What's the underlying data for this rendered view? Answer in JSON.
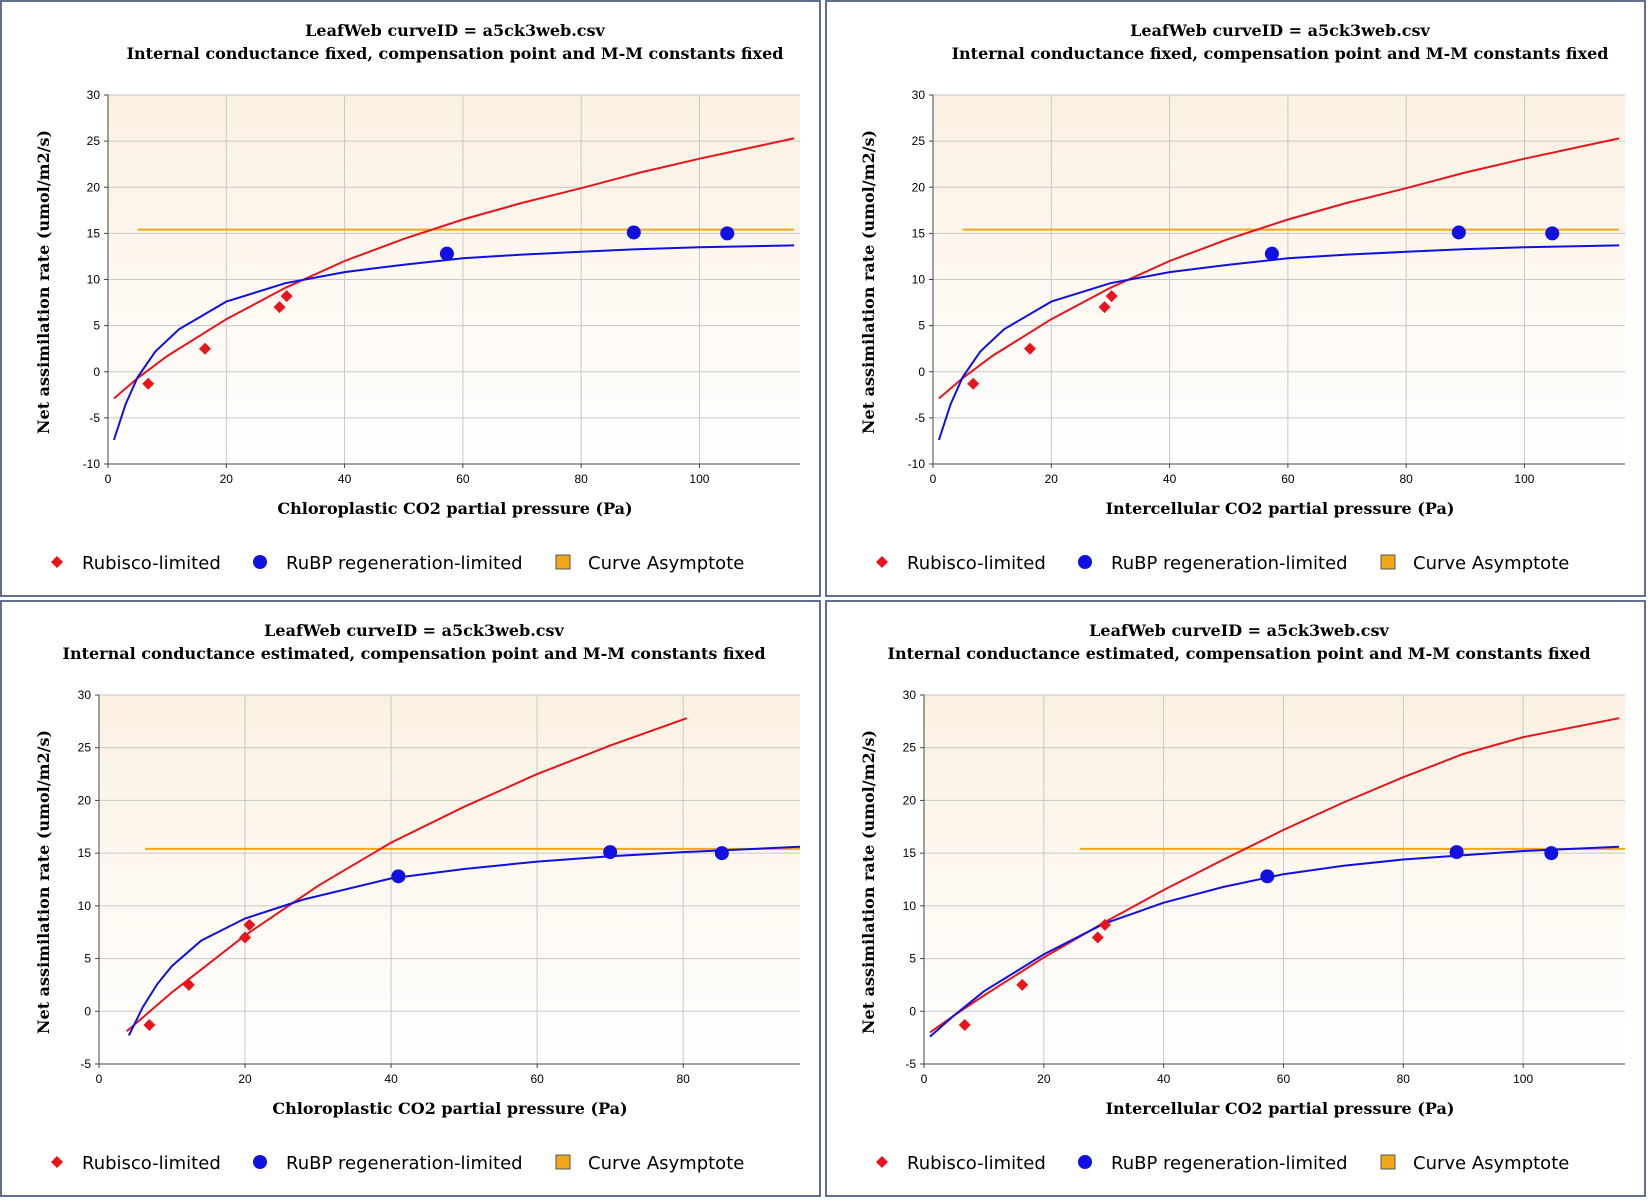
{
  "colors": {
    "rubisco": "#e8141c",
    "rubp": "#1010e0",
    "asymptote": "#f0a818",
    "plot_bg_top": "#fbf1e2",
    "plot_bg_bottom": "#ffffff",
    "grid": "#c8c8c8",
    "border": "#5f6f8d"
  },
  "legend": {
    "rubisco": "Rubisco-limited",
    "rubp": "RuBP regeneration-limited",
    "asymptote": "Curve Asymptote"
  },
  "chart_data": [
    {
      "type": "scatter",
      "title": "LeafWeb curveID = a5ck3web.csv",
      "subtitle": "Internal conductance fixed, compensation point and M-M constants fixed",
      "xlabel": "Chloroplastic CO2 partial pressure (Pa)",
      "ylabel": "Net assimilation rate (umol/m2/s)",
      "xlim": [
        0,
        117
      ],
      "ylim": [
        -10,
        30
      ],
      "xticks": [
        0,
        20,
        40,
        60,
        80,
        100
      ],
      "yticks": [
        -10,
        -5,
        0,
        5,
        10,
        15,
        20,
        25,
        30
      ],
      "grid": true,
      "legend_position": "bottom",
      "series": [
        {
          "name": "Rubisco-limited",
          "kind": "points",
          "marker": "diamond",
          "x": [
            6.8,
            16.4,
            29.0,
            30.2
          ],
          "y": [
            -1.3,
            2.5,
            7.0,
            8.2
          ]
        },
        {
          "name": "RuBP regeneration-limited",
          "kind": "points",
          "marker": "circle",
          "x": [
            57.3,
            88.9,
            104.7
          ],
          "y": [
            12.8,
            15.1,
            15.0
          ]
        },
        {
          "name": "Curve Asymptote",
          "kind": "line",
          "x": [
            5,
            116
          ],
          "y": [
            15.4,
            15.4
          ]
        },
        {
          "kind": "curve",
          "color": "rubisco",
          "x": [
            1,
            5,
            10,
            20,
            30,
            40,
            50,
            60,
            70,
            80,
            90,
            100,
            116
          ],
          "y": [
            -2.9,
            -0.7,
            1.7,
            5.7,
            9.1,
            12.0,
            14.4,
            16.5,
            18.3,
            19.9,
            21.6,
            23.1,
            25.3
          ]
        },
        {
          "kind": "curve",
          "color": "rubp",
          "x": [
            1,
            3,
            5,
            8,
            12,
            20,
            30,
            40,
            50,
            60,
            70,
            80,
            90,
            100,
            116
          ],
          "y": [
            -7.4,
            -3.5,
            -0.6,
            2.2,
            4.6,
            7.6,
            9.6,
            10.8,
            11.6,
            12.3,
            12.7,
            13.0,
            13.3,
            13.5,
            13.7
          ]
        }
      ]
    },
    {
      "type": "scatter",
      "title": "LeafWeb curveID = a5ck3web.csv",
      "subtitle": "Internal conductance fixed, compensation point and M-M constants fixed",
      "xlabel": "Intercellular CO2 partial pressure (Pa)",
      "ylabel": "Net assimilation rate (umol/m2/s)",
      "xlim": [
        0,
        117
      ],
      "ylim": [
        -10,
        30
      ],
      "xticks": [
        0,
        20,
        40,
        60,
        80,
        100
      ],
      "yticks": [
        -10,
        -5,
        0,
        5,
        10,
        15,
        20,
        25,
        30
      ],
      "grid": true,
      "legend_position": "bottom",
      "series": [
        {
          "name": "Rubisco-limited",
          "kind": "points",
          "marker": "diamond",
          "x": [
            6.8,
            16.4,
            29.0,
            30.2
          ],
          "y": [
            -1.3,
            2.5,
            7.0,
            8.2
          ]
        },
        {
          "name": "RuBP regeneration-limited",
          "kind": "points",
          "marker": "circle",
          "x": [
            57.3,
            88.9,
            104.7
          ],
          "y": [
            12.8,
            15.1,
            15.0
          ]
        },
        {
          "name": "Curve Asymptote",
          "kind": "line",
          "x": [
            5,
            116
          ],
          "y": [
            15.4,
            15.4
          ]
        },
        {
          "kind": "curve",
          "color": "rubisco",
          "x": [
            1,
            5,
            10,
            20,
            30,
            40,
            50,
            60,
            70,
            80,
            90,
            100,
            116
          ],
          "y": [
            -2.9,
            -0.7,
            1.7,
            5.7,
            9.1,
            12.0,
            14.4,
            16.5,
            18.3,
            19.9,
            21.6,
            23.1,
            25.3
          ]
        },
        {
          "kind": "curve",
          "color": "rubp",
          "x": [
            1,
            3,
            5,
            8,
            12,
            20,
            30,
            40,
            50,
            60,
            70,
            80,
            90,
            100,
            116
          ],
          "y": [
            -7.4,
            -3.5,
            -0.6,
            2.2,
            4.6,
            7.6,
            9.6,
            10.8,
            11.6,
            12.3,
            12.7,
            13.0,
            13.3,
            13.5,
            13.7
          ]
        }
      ]
    },
    {
      "type": "scatter",
      "title": "LeafWeb curveID = a5ck3web.csv",
      "subtitle": "Internal conductance estimated, compensation point and M-M constants fixed",
      "xlabel": "Chloroplastic CO2 partial pressure (Pa)",
      "ylabel": "Net assimilation rate (umol/m2/s)",
      "xlim": [
        0,
        96
      ],
      "ylim": [
        -5,
        30
      ],
      "xticks": [
        0,
        20,
        40,
        60,
        80
      ],
      "yticks": [
        -5,
        0,
        5,
        10,
        15,
        20,
        25,
        30
      ],
      "grid": true,
      "legend_position": "bottom",
      "series": [
        {
          "name": "Rubisco-limited",
          "kind": "points",
          "marker": "diamond",
          "x": [
            6.9,
            12.3,
            20.0,
            20.6
          ],
          "y": [
            -1.3,
            2.5,
            7.0,
            8.2
          ]
        },
        {
          "name": "RuBP regeneration-limited",
          "kind": "points",
          "marker": "circle",
          "x": [
            41.0,
            70.0,
            85.3
          ],
          "y": [
            12.8,
            15.1,
            15.0
          ]
        },
        {
          "name": "Curve Asymptote",
          "kind": "line",
          "x": [
            6.3,
            96
          ],
          "y": [
            15.4,
            15.4
          ]
        },
        {
          "kind": "curve",
          "color": "rubisco",
          "x": [
            3.8,
            10,
            20,
            30,
            40,
            50,
            60,
            70,
            80.5
          ],
          "y": [
            -1.9,
            1.8,
            7.2,
            11.9,
            16.0,
            19.4,
            22.5,
            25.2,
            27.8
          ]
        },
        {
          "kind": "curve",
          "color": "rubp",
          "x": [
            4.1,
            6,
            8,
            10,
            14,
            20,
            28,
            40,
            50,
            60,
            70,
            80,
            96
          ],
          "y": [
            -2.3,
            0.4,
            2.6,
            4.3,
            6.7,
            8.8,
            10.6,
            12.6,
            13.5,
            14.2,
            14.7,
            15.1,
            15.6
          ]
        }
      ]
    },
    {
      "type": "scatter",
      "title": "LeafWeb curveID = a5ck3web.csv",
      "subtitle": "Internal conductance estimated, compensation point and M-M constants fixed",
      "xlabel": "Intercellular CO2 partial pressure (Pa)",
      "ylabel": "Net assimilation rate (umol/m2/s)",
      "xlim": [
        0,
        117
      ],
      "ylim": [
        -5,
        30
      ],
      "xticks": [
        0,
        20,
        40,
        60,
        80,
        100
      ],
      "yticks": [
        -5,
        0,
        5,
        10,
        15,
        20,
        25,
        30
      ],
      "grid": true,
      "legend_position": "bottom",
      "series": [
        {
          "name": "Rubisco-limited",
          "kind": "points",
          "marker": "diamond",
          "x": [
            6.8,
            16.4,
            29.0,
            30.2
          ],
          "y": [
            -1.3,
            2.5,
            7.0,
            8.2
          ]
        },
        {
          "name": "RuBP regeneration-limited",
          "kind": "points",
          "marker": "circle",
          "x": [
            57.3,
            88.9,
            104.7
          ],
          "y": [
            12.8,
            15.1,
            15.0
          ]
        },
        {
          "name": "Curve Asymptote",
          "kind": "line",
          "x": [
            26,
            117
          ],
          "y": [
            15.4,
            15.4
          ]
        },
        {
          "kind": "curve",
          "color": "rubisco",
          "x": [
            1,
            5,
            10,
            20,
            30,
            40,
            50,
            60,
            70,
            80,
            90,
            100,
            116
          ],
          "y": [
            -2.0,
            -0.4,
            1.5,
            5.1,
            8.4,
            11.5,
            14.4,
            17.2,
            19.8,
            22.2,
            24.4,
            26.0,
            27.8
          ]
        },
        {
          "kind": "curve",
          "color": "rubp",
          "x": [
            1,
            5,
            10,
            20,
            30,
            40,
            50,
            60,
            70,
            80,
            90,
            100,
            116
          ],
          "y": [
            -2.4,
            -0.4,
            1.9,
            5.4,
            8.3,
            10.3,
            11.8,
            13.0,
            13.8,
            14.4,
            14.8,
            15.2,
            15.6
          ]
        }
      ]
    }
  ]
}
